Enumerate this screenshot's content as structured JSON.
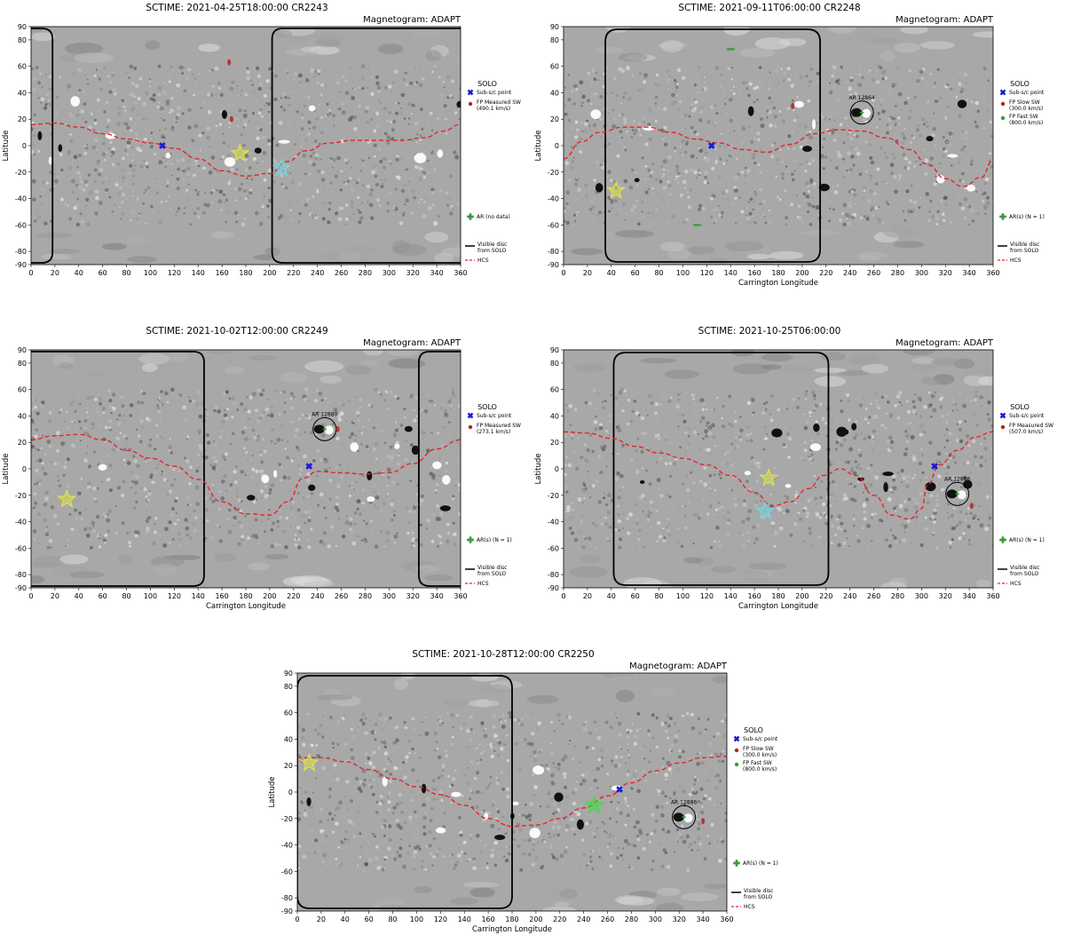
{
  "colors": {
    "hcs": "#e8232a",
    "disk": "#000000",
    "subsc": "#1a1adb",
    "star_yellow": "#e6ea3c",
    "star_cyan": "#68e0ea",
    "star_green": "#2ee82e",
    "fp_slow": "#b82020",
    "fp_fast": "#3a9a3a",
    "ar_marker": "#3a9a3a",
    "map_bg": "#a8a8a8"
  },
  "chart_data": [
    {
      "type": "scatter",
      "title": "SCTIME: 2021-04-25T18:00:00 CR2243",
      "subtitle": "Magnetogram: ADAPT",
      "xlabel": "",
      "ylabel": "Latitude",
      "xlim": [
        0,
        360
      ],
      "ylim": [
        -90,
        90
      ],
      "xticks": [
        0,
        20,
        40,
        60,
        80,
        100,
        120,
        140,
        160,
        180,
        200,
        220,
        240,
        260,
        280,
        300,
        320,
        340,
        360
      ],
      "yticks": [
        90,
        80,
        60,
        40,
        20,
        0,
        -20,
        -40,
        -60,
        -80,
        -90
      ],
      "disk_edges": [
        18,
        202
      ],
      "disk_side": "outside",
      "hcs": [
        [
          0,
          16
        ],
        [
          20,
          17
        ],
        [
          40,
          14
        ],
        [
          60,
          9
        ],
        [
          80,
          5
        ],
        [
          100,
          2
        ],
        [
          120,
          -2
        ],
        [
          140,
          -10
        ],
        [
          160,
          -19
        ],
        [
          180,
          -23
        ],
        [
          200,
          -21
        ],
        [
          215,
          -12
        ],
        [
          230,
          -4
        ],
        [
          250,
          2
        ],
        [
          270,
          4
        ],
        [
          290,
          4
        ],
        [
          310,
          4
        ],
        [
          330,
          6
        ],
        [
          345,
          11
        ],
        [
          360,
          16
        ]
      ],
      "subsc": [
        110,
        0
      ],
      "stars": [
        {
          "x": 175,
          "y": -6,
          "color": "star_yellow"
        },
        {
          "x": 210,
          "y": -17,
          "color": "star_cyan"
        }
      ],
      "fp_points": [
        {
          "x": 168,
          "y": 20,
          "kind": "slow"
        },
        {
          "x": 166,
          "y": 63,
          "kind": "slow"
        }
      ],
      "active_regions": [],
      "legend": {
        "title": "SOLO",
        "subsc": "Sub-s/c point",
        "fp_label": "FP Measured SW",
        "fp_speed": "(490.1 km/s)",
        "ar_label": "AR (no data)",
        "disk_label_1": "Visible disc",
        "disk_label_2": "from SOLO",
        "hcs_label": "HCS"
      }
    },
    {
      "type": "scatter",
      "title": "SCTIME: 2021-09-11T06:00:00 CR2248",
      "subtitle": "Magnetogram: ADAPT",
      "xlabel": "Carrington Longitude",
      "ylabel": "Latitude",
      "xlim": [
        0,
        360
      ],
      "ylim": [
        -90,
        90
      ],
      "xticks": [
        0,
        20,
        40,
        60,
        80,
        100,
        120,
        140,
        160,
        180,
        200,
        220,
        240,
        260,
        280,
        300,
        320,
        340,
        360
      ],
      "yticks": [
        90,
        80,
        60,
        40,
        20,
        0,
        -20,
        -40,
        -60,
        -80,
        -90
      ],
      "disk_edges": [
        35,
        215
      ],
      "disk_side": "inside",
      "hcs": [
        [
          0,
          -10
        ],
        [
          15,
          3
        ],
        [
          30,
          10
        ],
        [
          50,
          14
        ],
        [
          70,
          14
        ],
        [
          90,
          10
        ],
        [
          110,
          5
        ],
        [
          130,
          2
        ],
        [
          150,
          -3
        ],
        [
          170,
          -5
        ],
        [
          190,
          1
        ],
        [
          210,
          9
        ],
        [
          230,
          12
        ],
        [
          250,
          11
        ],
        [
          270,
          6
        ],
        [
          290,
          -3
        ],
        [
          305,
          -14
        ],
        [
          320,
          -25
        ],
        [
          335,
          -31
        ],
        [
          350,
          -24
        ],
        [
          360,
          -11
        ]
      ],
      "subsc": [
        124,
        0
      ],
      "stars": [
        {
          "x": 44,
          "y": -34,
          "color": "star_yellow"
        }
      ],
      "fp_points": [
        {
          "x": 192,
          "y": 30,
          "kind": "slow"
        },
        {
          "x": 140,
          "y": 73,
          "kind": "fast"
        },
        {
          "x": 112,
          "y": -60,
          "kind": "fast"
        }
      ],
      "active_regions": [
        {
          "x": 250,
          "y": 25,
          "label": "AR 12864"
        }
      ],
      "legend": {
        "title": "SOLO",
        "subsc": "Sub-s/c point",
        "fp_label": "FP Slow SW",
        "fp_speed": "(300.0 km/s)",
        "fp2_label": "FP Fast SW",
        "fp2_speed": "(800.0 km/s)",
        "ar_label": "AR(s) (N = 1)",
        "disk_label_1": "Visible disc",
        "disk_label_2": "from SOLO",
        "hcs_label": "HCS"
      }
    },
    {
      "type": "scatter",
      "title": "SCTIME: 2021-10-02T12:00:00 CR2249",
      "subtitle": "Magnetogram: ADAPT",
      "xlabel": "Carrington Longitude",
      "ylabel": "Latitude",
      "xlim": [
        0,
        360
      ],
      "ylim": [
        -90,
        90
      ],
      "xticks": [
        0,
        20,
        40,
        60,
        80,
        100,
        120,
        140,
        160,
        180,
        200,
        220,
        240,
        260,
        280,
        300,
        320,
        340,
        360
      ],
      "yticks": [
        90,
        80,
        60,
        40,
        20,
        0,
        -20,
        -40,
        -60,
        -80,
        -90
      ],
      "disk_edges": [
        145,
        325
      ],
      "disk_side": "outside",
      "hcs": [
        [
          0,
          22
        ],
        [
          20,
          25
        ],
        [
          40,
          26
        ],
        [
          60,
          22
        ],
        [
          80,
          14
        ],
        [
          100,
          8
        ],
        [
          120,
          2
        ],
        [
          140,
          -8
        ],
        [
          160,
          -25
        ],
        [
          180,
          -34
        ],
        [
          200,
          -35
        ],
        [
          215,
          -25
        ],
        [
          228,
          -7
        ],
        [
          240,
          -2
        ],
        [
          260,
          -3
        ],
        [
          280,
          -4
        ],
        [
          300,
          -3
        ],
        [
          320,
          4
        ],
        [
          340,
          15
        ],
        [
          360,
          22
        ]
      ],
      "subsc": [
        233,
        2
      ],
      "stars": [
        {
          "x": 30,
          "y": -23,
          "color": "star_yellow"
        }
      ],
      "fp_points": [
        {
          "x": 257,
          "y": 30,
          "kind": "slow"
        }
      ],
      "active_regions": [
        {
          "x": 246,
          "y": 30,
          "label": "AR 12880"
        }
      ],
      "legend": {
        "title": "SOLO",
        "subsc": "Sub-s/c point",
        "fp_label": "FP Measured SW",
        "fp_speed": "(273.1 km/s)",
        "ar_label": "AR(s) (N = 1)",
        "disk_label_1": "Visible disc",
        "disk_label_2": "from SOLO",
        "hcs_label": "HCS"
      }
    },
    {
      "type": "scatter",
      "title": "SCTIME: 2021-10-25T06:00:00",
      "subtitle": "Magnetogram: ADAPT",
      "xlabel": "Carrington Longitude",
      "ylabel": "Latitude",
      "xlim": [
        0,
        360
      ],
      "ylim": [
        -90,
        90
      ],
      "xticks": [
        0,
        20,
        40,
        60,
        80,
        100,
        120,
        140,
        160,
        180,
        200,
        220,
        240,
        260,
        280,
        300,
        320,
        340,
        360
      ],
      "yticks": [
        90,
        80,
        60,
        40,
        20,
        0,
        -20,
        -40,
        -60,
        -80,
        -90
      ],
      "disk_edges": [
        42,
        222
      ],
      "disk_side": "inside",
      "hcs": [
        [
          0,
          28
        ],
        [
          20,
          27
        ],
        [
          40,
          23
        ],
        [
          60,
          17
        ],
        [
          80,
          12
        ],
        [
          100,
          8
        ],
        [
          120,
          3
        ],
        [
          140,
          -5
        ],
        [
          160,
          -18
        ],
        [
          175,
          -28
        ],
        [
          190,
          -25
        ],
        [
          205,
          -15
        ],
        [
          218,
          -5
        ],
        [
          232,
          0
        ],
        [
          245,
          -5
        ],
        [
          260,
          -20
        ],
        [
          275,
          -35
        ],
        [
          290,
          -38
        ],
        [
          300,
          -30
        ],
        [
          305,
          -12
        ],
        [
          315,
          3
        ],
        [
          330,
          14
        ],
        [
          345,
          24
        ],
        [
          360,
          28
        ]
      ],
      "subsc": [
        311,
        2
      ],
      "stars": [
        {
          "x": 172,
          "y": -7,
          "color": "star_yellow"
        },
        {
          "x": 169,
          "y": -32,
          "color": "star_cyan"
        }
      ],
      "fp_points": [
        {
          "x": 342,
          "y": -28,
          "kind": "slow"
        }
      ],
      "active_regions": [
        {
          "x": 330,
          "y": -19,
          "label": "AR 12886"
        }
      ],
      "legend": {
        "title": "SOLO",
        "subsc": "Sub-s/c point",
        "fp_label": "FP Measured SW",
        "fp_speed": "(507.0 km/s)",
        "ar_label": "AR(s) (N = 1)",
        "disk_label_1": "Visible disc",
        "disk_label_2": "from SOLO",
        "hcs_label": "HCS"
      }
    },
    {
      "type": "scatter",
      "title": "SCTIME: 2021-10-28T12:00:00 CR2250",
      "subtitle": "Magnetogram: ADAPT",
      "xlabel": "Carrington Longitude",
      "ylabel": "Latitude",
      "xlim": [
        0,
        360
      ],
      "ylim": [
        -90,
        90
      ],
      "xticks": [
        0,
        20,
        40,
        60,
        80,
        100,
        120,
        140,
        160,
        180,
        200,
        220,
        240,
        260,
        280,
        300,
        320,
        340,
        360
      ],
      "yticks": [
        90,
        80,
        60,
        40,
        20,
        0,
        -20,
        -40,
        -60,
        -80,
        -90
      ],
      "disk_edges": [
        0,
        180
      ],
      "disk_side": "inside",
      "hcs": [
        [
          0,
          26
        ],
        [
          20,
          26
        ],
        [
          40,
          23
        ],
        [
          60,
          17
        ],
        [
          80,
          10
        ],
        [
          100,
          4
        ],
        [
          120,
          -2
        ],
        [
          140,
          -10
        ],
        [
          160,
          -20
        ],
        [
          180,
          -26
        ],
        [
          200,
          -25
        ],
        [
          220,
          -20
        ],
        [
          240,
          -12
        ],
        [
          260,
          -3
        ],
        [
          280,
          7
        ],
        [
          300,
          16
        ],
        [
          320,
          22
        ],
        [
          340,
          26
        ],
        [
          360,
          27
        ]
      ],
      "subsc": [
        270,
        2
      ],
      "stars": [
        {
          "x": 10,
          "y": 22,
          "color": "star_yellow"
        },
        {
          "x": 249,
          "y": -10,
          "color": "star_green"
        }
      ],
      "fp_points": [
        {
          "x": 340,
          "y": -22,
          "kind": "slow"
        }
      ],
      "active_regions": [
        {
          "x": 324,
          "y": -19,
          "label": "AR 12886"
        }
      ],
      "legend": {
        "title": "SOLO",
        "subsc": "Sub-s/c point",
        "fp_label": "FP Slow SW",
        "fp_speed": "(300.0 km/s)",
        "fp2_label": "FP Fast SW",
        "fp2_speed": "(800.0 km/s)",
        "ar_label": "AR(s) (N = 1)",
        "disk_label_1": "Visible disc",
        "disk_label_2": "from SOLO",
        "hcs_label": "HCS"
      }
    }
  ]
}
